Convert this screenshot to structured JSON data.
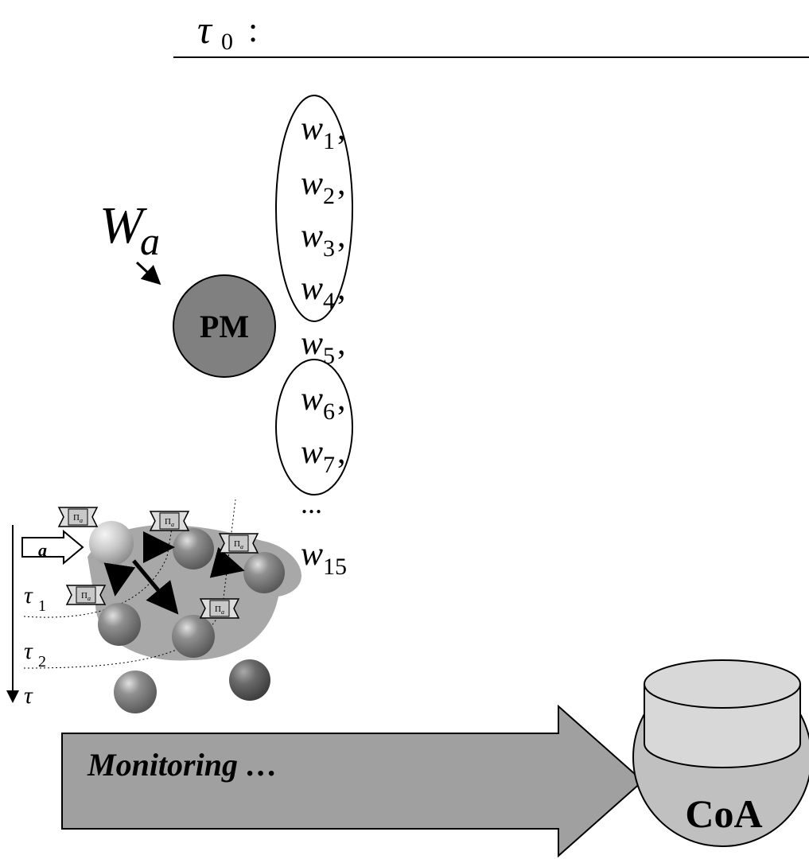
{
  "header": {
    "base": "τ",
    "sub": "0",
    "colon": ":"
  },
  "input_set": {
    "base": "W",
    "sub": "a"
  },
  "process_model": "PM",
  "w_items": [
    {
      "base": "w",
      "sub": "1",
      "punct": ","
    },
    {
      "base": "w",
      "sub": "2",
      "punct": ","
    },
    {
      "base": "w",
      "sub": "3",
      "punct": ","
    },
    {
      "base": "w",
      "sub": "4",
      "punct": ","
    },
    {
      "base": "w",
      "sub": "5",
      "punct": ","
    },
    {
      "base": "w",
      "sub": "6",
      "punct": ","
    },
    {
      "base": "w",
      "sub": "7",
      "punct": ","
    }
  ],
  "ellipsis": "...",
  "w_last": {
    "base": "w",
    "sub": "15"
  },
  "agent_label": {
    "base": "Π",
    "sub": "a"
  },
  "timeline": {
    "input": "a",
    "tau1": {
      "base": "τ",
      "sub": "1"
    },
    "tau2": {
      "base": "τ",
      "sub": "2"
    },
    "axis": "τ"
  },
  "monitoring": "Monitoring …",
  "store": "CoA"
}
